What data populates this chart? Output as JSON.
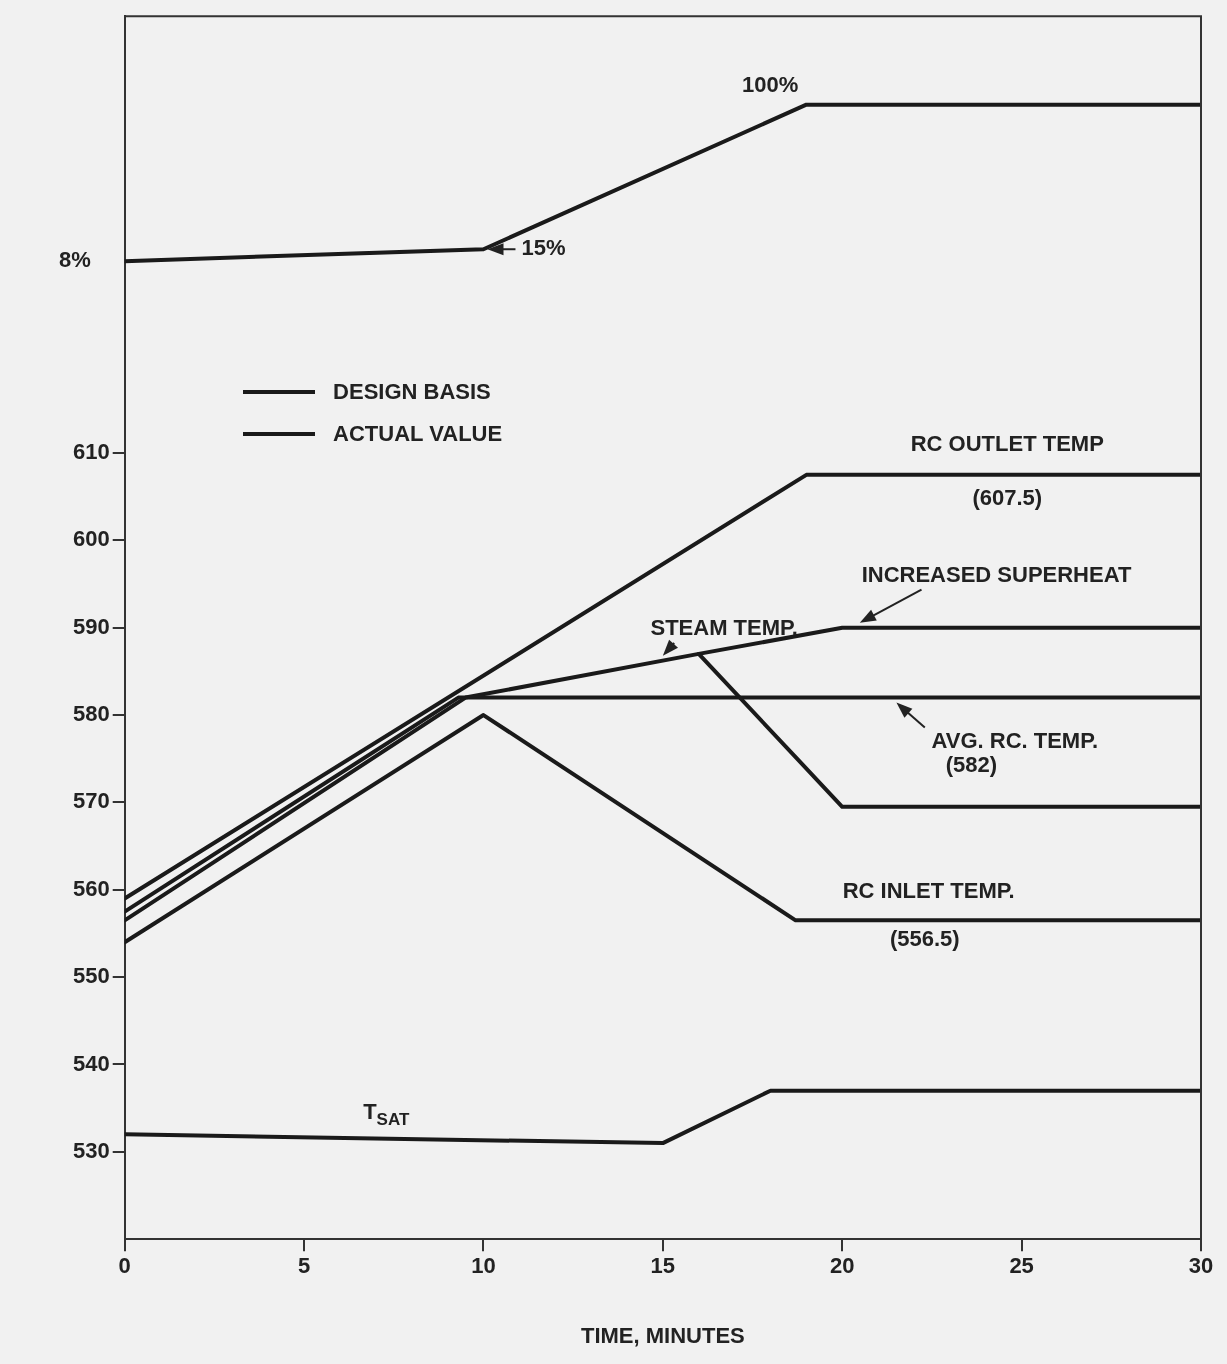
{
  "chart_data": {
    "type": "line",
    "xlabel": "TIME, MINUTES",
    "xlim": [
      0,
      30
    ],
    "xticks": [
      0,
      5,
      10,
      15,
      20,
      25,
      30
    ],
    "ylim": [
      520,
      660
    ],
    "yticks": [
      530,
      540,
      550,
      560,
      570,
      580,
      590,
      600,
      610
    ],
    "y2lim": [
      -567,
      152
    ],
    "grid": false,
    "marker": "none",
    "line_style": "solid",
    "series": [
      {
        "x": [
          0,
          10,
          19,
          30
        ],
        "values": [
          8,
          15,
          100,
          100
        ],
        "value_labels": [
          "8%",
          "15%",
          "100%",
          null
        ],
        "axis": "y2",
        "color": "#1a1a1a"
      },
      {
        "name": "RC OUTLET TEMP",
        "x": [
          0,
          19,
          24.6,
          30
        ],
        "values": [
          559,
          607.5,
          607.5,
          607.5
        ],
        "value_labels": [
          null,
          null,
          "(607.5)",
          null
        ],
        "color": "#1a1a1a"
      },
      {
        "name": "STEAM TEMP.",
        "x": [
          0,
          9.5,
          16,
          20,
          30
        ],
        "values": [
          556.5,
          582,
          587,
          569.5,
          569.5
        ],
        "color": "#1a1a1a"
      },
      {
        "name": "INCREASED SUPERHEAT",
        "x": [
          16,
          20,
          30
        ],
        "values": [
          587,
          590,
          590
        ],
        "color": "#1a1a1a"
      },
      {
        "name": "AVG. RC. TEMP.",
        "x": [
          0,
          9.3,
          23.6,
          30
        ],
        "values": [
          557.5,
          582,
          582,
          582
        ],
        "value_labels": [
          null,
          null,
          "(582)",
          null
        ],
        "color": "#1a1a1a"
      },
      {
        "name": "RC INLET TEMP.",
        "x": [
          0,
          10,
          18.7,
          22.3,
          30
        ],
        "values": [
          554,
          580,
          556.5,
          556.5,
          556.5
        ],
        "value_labels": [
          null,
          null,
          null,
          "(556.5)",
          null
        ],
        "color": "#1a1a1a"
      },
      {
        "name": "T$_{SAT}$",
        "x": [
          0,
          15,
          18,
          30
        ],
        "values": [
          532,
          531,
          537,
          537
        ],
        "color": "#1a1a1a"
      }
    ],
    "annotations": [
      "DESIGN BASIS",
      "ACTUAL VALUE"
    ]
  }
}
